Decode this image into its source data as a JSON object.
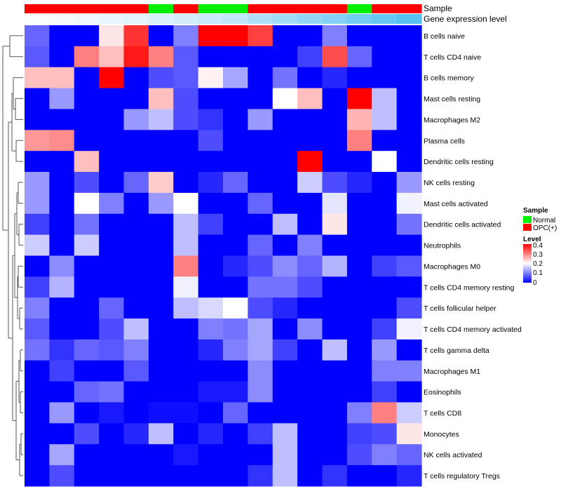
{
  "chart_data": {
    "type": "heatmap",
    "annotation_labels": {
      "sample": "Sample",
      "gene": "Gene expression level"
    },
    "sample_annotation": [
      "OPC(+)",
      "OPC(+)",
      "OPC(+)",
      "OPC(+)",
      "OPC(+)",
      "Normal",
      "OPC(+)",
      "Normal",
      "Normal",
      "OPC(+)",
      "OPC(+)",
      "OPC(+)",
      "OPC(+)",
      "Normal",
      "OPC(+)",
      "OPC(+)"
    ],
    "gene_expression_annotation": [
      0.02,
      0.05,
      0.08,
      0.12,
      0.16,
      0.2,
      0.25,
      0.3,
      0.35,
      0.4,
      0.45,
      0.5,
      0.55,
      0.6,
      0.65,
      0.7
    ],
    "rows": [
      "B cells naive",
      "T cells CD4 naive",
      "B cells memory",
      "Mast cells resting",
      "Macrophages M2",
      "Plasma cells",
      "Dendritic cells resting",
      "NK cells resting",
      "Mast cells activated",
      "Dendritic cells activated",
      "Neutrophils",
      "Macrophages M0",
      "T cells CD4 memory resting",
      "T cells follicular helper",
      "T cells CD4 memory activated",
      "T cells gamma delta",
      "Macrophages M1",
      "Eosinophils",
      "T cells CD8",
      "Monocytes",
      "NK cells activated",
      "T cells regulatory  Tregs"
    ],
    "values": [
      [
        0.08,
        0,
        0,
        0.22,
        0.36,
        0,
        0.1,
        0.4,
        0.4,
        0.35,
        0,
        0,
        0.1,
        0,
        0,
        0
      ],
      [
        0.07,
        0,
        0.3,
        0.25,
        0.38,
        0.3,
        0.07,
        0,
        0,
        0,
        0,
        0.05,
        0.34,
        0.08,
        0,
        0
      ],
      [
        0.25,
        0.25,
        0,
        0.4,
        0,
        0.06,
        0.07,
        0.21,
        0.13,
        0,
        0.09,
        0,
        0.03,
        0,
        0,
        0
      ],
      [
        0,
        0.12,
        0,
        0,
        0,
        0.25,
        0.06,
        0,
        0,
        0,
        0.2,
        0.25,
        0,
        0.4,
        0.15,
        0
      ],
      [
        0,
        0,
        0,
        0,
        0.12,
        0.15,
        0.06,
        0.04,
        0,
        0.12,
        0,
        0,
        0,
        0.26,
        0.15,
        0
      ],
      [
        0.28,
        0.29,
        0,
        0,
        0,
        0,
        0,
        0.06,
        0,
        0,
        0,
        0,
        0,
        0.3,
        0,
        0
      ],
      [
        0,
        0,
        0.25,
        0,
        0,
        0,
        0,
        0,
        0,
        0,
        0,
        0.4,
        0,
        0,
        0.2,
        0
      ],
      [
        0.12,
        0,
        0.06,
        0,
        0.08,
        0.24,
        0,
        0.03,
        0.08,
        0,
        0,
        0.16,
        0.06,
        0.03,
        0,
        0.12
      ],
      [
        0.12,
        0,
        0.2,
        0.1,
        0,
        0.12,
        0.2,
        0,
        0,
        0.08,
        0,
        0,
        0.18,
        0,
        0,
        0.19
      ],
      [
        0.05,
        0,
        0.09,
        0,
        0,
        0,
        0.15,
        0.05,
        0,
        0,
        0.15,
        0,
        0.22,
        0,
        0,
        0.09
      ],
      [
        0.16,
        0,
        0.16,
        0,
        0,
        0,
        0.15,
        0,
        0,
        0.08,
        0,
        0.1,
        0,
        0,
        0,
        0
      ],
      [
        0,
        0.11,
        0,
        0,
        0,
        0,
        0.3,
        0,
        0.03,
        0.06,
        0.11,
        0.08,
        0.14,
        0,
        0.05,
        0.07
      ],
      [
        0.05,
        0.14,
        0,
        0,
        0,
        0,
        0.19,
        0,
        0,
        0.09,
        0.09,
        0.06,
        0,
        0,
        0,
        0
      ],
      [
        0.1,
        0,
        0,
        0.08,
        0,
        0,
        0.15,
        0.17,
        0.2,
        0.06,
        0.03,
        0,
        0,
        0,
        0,
        0.06
      ],
      [
        0.07,
        0,
        0,
        0.06,
        0.15,
        0,
        0,
        0.1,
        0.09,
        0.13,
        0,
        0.11,
        0,
        0,
        0.05,
        0.19
      ],
      [
        0.09,
        0.04,
        0.08,
        0.07,
        0.1,
        0,
        0,
        0.03,
        0.1,
        0.13,
        0.05,
        0,
        0.15,
        0,
        0.12,
        0
      ],
      [
        0,
        0.05,
        0,
        0,
        0.07,
        0,
        0,
        0,
        0,
        0.11,
        0,
        0,
        0,
        0,
        0.1,
        0.1
      ],
      [
        0,
        0,
        0.08,
        0.09,
        0,
        0,
        0,
        0.02,
        0.02,
        0.11,
        0,
        0,
        0,
        0,
        0.05,
        0
      ],
      [
        0,
        0.12,
        0,
        0.02,
        0,
        0.01,
        0.01,
        0,
        0.08,
        0,
        0,
        0,
        0,
        0.1,
        0.3,
        0.16
      ],
      [
        0,
        0,
        0.06,
        0,
        0.03,
        0.15,
        0,
        0.03,
        0,
        0.05,
        0.15,
        0,
        0,
        0.05,
        0.06,
        0.22
      ],
      [
        0,
        0.13,
        0,
        0,
        0,
        0,
        0.02,
        0,
        0,
        0,
        0.15,
        0,
        0,
        0.06,
        0.1,
        0.08
      ],
      [
        0,
        0.06,
        0,
        0,
        0,
        0,
        0,
        0,
        0,
        0.04,
        0.15,
        0,
        0.04,
        0,
        0,
        0.03
      ]
    ],
    "color_scale": {
      "min": 0,
      "max": 0.4,
      "low": "#0000ff",
      "mid": "#ffffff",
      "high": "#ff0000",
      "mid_value": 0.2
    },
    "legend": {
      "sample_title": "Sample",
      "sample_items": [
        {
          "label": "Normal",
          "color": "#00ee00"
        },
        {
          "label": "OPC(+)",
          "color": "#ff0000"
        }
      ],
      "level_title": "Level",
      "level_ticks": [
        "0.4",
        "0.3",
        "0.2",
        "0.1",
        "0"
      ],
      "placement": "right"
    },
    "gene_scale_colors": [
      "#ffffff",
      "#bfe6fb",
      "#56c2f2"
    ]
  }
}
